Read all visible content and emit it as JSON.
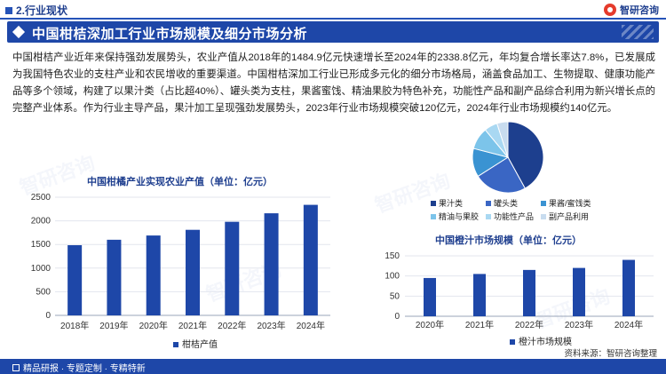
{
  "header": {
    "section_label": "2.行业现状",
    "brand_name": "智研咨询"
  },
  "title_bar": {
    "title": "中国柑桔深加工行业市场规模及细分市场分析"
  },
  "paragraph": "中国柑桔产业近年来保持强劲发展势头，农业产值从2018年的1484.9亿元快速增长至2024年的2338.8亿元，年均复合增长率达7.8%，已发展成为我国特色农业的支柱产业和农民增收的重要渠道。中国柑桔深加工行业已形成多元化的细分市场格局，涵盖食品加工、生物提取、健康功能产品等多个领域，构建了以果汁类（占比超40%）、罐头类为支柱，果酱蜜饯、精油果胶为特色补充，功能性产品和副产品综合利用为新兴增长点的完整产业体系。作为行业主导产品，果汁加工呈现强劲发展势头，2023年行业市场规模突破120亿元，2024年行业市场规模约140亿元。",
  "watermark_text": "智研咨询",
  "footer": {
    "slogan": "精品研报 · 专题定制 · 专精特新",
    "source": "资料来源：智研咨询整理"
  },
  "chart_data": [
    {
      "type": "bar",
      "title": "中国柑橘产业实现农业产值（单位：亿元）",
      "categories": [
        "2018年",
        "2019年",
        "2020年",
        "2021年",
        "2022年",
        "2023年",
        "2024年"
      ],
      "series": [
        {
          "name": "柑桔产值",
          "values": [
            1484.9,
            1600,
            1690,
            1810,
            1980,
            2160,
            2338.8
          ]
        }
      ],
      "y_ticks": [
        "0",
        "500",
        "1000",
        "1500",
        "2000",
        "2500"
      ],
      "ylim": [
        0,
        2500
      ],
      "grid": true,
      "legend_position": "bottom",
      "color": "#1e47a8"
    },
    {
      "type": "pie",
      "title": "",
      "labels": [
        "果汁类",
        "罐头类",
        "果酱/蜜饯类",
        "精油与果胶",
        "功能性产品",
        "副产品利用"
      ],
      "values": [
        42,
        24,
        13,
        10,
        6,
        5
      ],
      "colors": [
        "#1d3f8e",
        "#3a66c4",
        "#3a93d2",
        "#7cc4ea",
        "#a9d8f2",
        "#c8dcef"
      ],
      "legend_position": "bottom"
    },
    {
      "type": "bar",
      "title": "中国橙汁市场规模（单位：亿元）",
      "categories": [
        "2020年",
        "2021年",
        "2022年",
        "2023年",
        "2024年"
      ],
      "series": [
        {
          "name": "橙汁市场规模",
          "values": [
            95,
            105,
            115,
            120,
            140
          ]
        }
      ],
      "y_ticks": [
        "0",
        "50",
        "100",
        "150"
      ],
      "ylim": [
        0,
        150
      ],
      "grid": true,
      "legend_position": "bottom",
      "color": "#1e47a8"
    }
  ]
}
